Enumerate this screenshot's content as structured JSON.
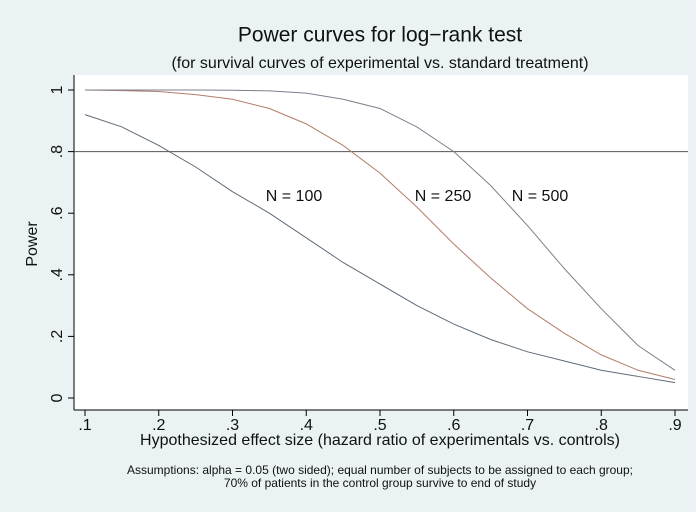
{
  "chart_data": {
    "type": "line",
    "title": "Power curves for log−rank test",
    "subtitle": "(for survival curves of experimental vs. standard treatment)",
    "x_label": "Hypothesized effect size (hazard ratio of experimentals vs. controls)",
    "y_label": "Power",
    "note": [
      "Assumptions: alpha = 0.05 (two sided); equal number of subjects to be assigned to each group;",
      "70% of patients in the control group survive to end of study"
    ],
    "x": [
      0.1,
      0.15,
      0.2,
      0.25,
      0.3,
      0.35,
      0.4,
      0.45,
      0.5,
      0.55,
      0.6,
      0.65,
      0.7,
      0.75,
      0.8,
      0.85,
      0.9
    ],
    "series": [
      {
        "name": "N = 100",
        "color": "#5f6b78",
        "values": [
          0.92,
          0.88,
          0.82,
          0.75,
          0.67,
          0.6,
          0.52,
          0.44,
          0.37,
          0.3,
          0.24,
          0.19,
          0.15,
          0.12,
          0.09,
          0.07,
          0.05
        ]
      },
      {
        "name": "N = 250",
        "color": "#b47c6c",
        "values": [
          1.0,
          0.998,
          0.995,
          0.985,
          0.97,
          0.94,
          0.89,
          0.82,
          0.73,
          0.62,
          0.5,
          0.39,
          0.29,
          0.21,
          0.14,
          0.09,
          0.06
        ]
      },
      {
        "name": "N = 500",
        "color": "#7c808c",
        "values": [
          1.0,
          1.0,
          1.0,
          1.0,
          0.999,
          0.997,
          0.99,
          0.97,
          0.94,
          0.88,
          0.8,
          0.69,
          0.56,
          0.42,
          0.29,
          0.17,
          0.09
        ]
      }
    ],
    "reference_line": 0.8,
    "xlim": [
      0.1,
      0.9
    ],
    "xticks": [
      {
        "value": 0.1,
        "label": ".1"
      },
      {
        "value": 0.2,
        "label": ".2"
      },
      {
        "value": 0.3,
        "label": ".3"
      },
      {
        "value": 0.4,
        "label": ".4"
      },
      {
        "value": 0.5,
        "label": ".5"
      },
      {
        "value": 0.6,
        "label": ".6"
      },
      {
        "value": 0.7,
        "label": ".7"
      },
      {
        "value": 0.8,
        "label": ".8"
      },
      {
        "value": 0.9,
        "label": ".9"
      }
    ],
    "ylim": [
      0,
      1
    ],
    "yticks": [
      0,
      {
        "value": 0.2,
        "label": ".2"
      },
      {
        "value": 0.4,
        "label": ".4"
      },
      {
        "value": 0.6,
        "label": ".6"
      },
      {
        "value": 0.8,
        "label": ".8"
      },
      1
    ]
  }
}
